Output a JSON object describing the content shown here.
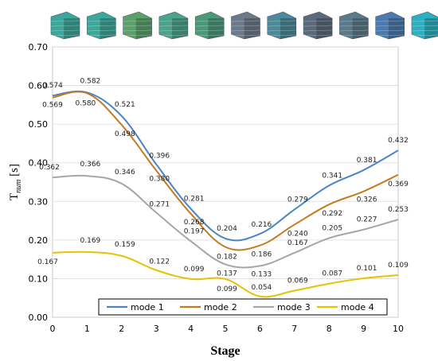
{
  "chart_data": {
    "type": "line",
    "xlabel": "Stage",
    "ylabel_main": "T",
    "ylabel_sub": "num",
    "ylabel_unit": " [s]",
    "xlim": [
      0,
      10
    ],
    "ylim": [
      0,
      0.7
    ],
    "x": [
      0,
      1,
      2,
      3,
      4,
      5,
      6,
      7,
      8,
      9,
      10
    ],
    "x_tick_labels": [
      "0",
      "1",
      "2",
      "3",
      "4",
      "5",
      "6",
      "7",
      "8",
      "9",
      "10"
    ],
    "y_ticks": [
      0,
      0.1,
      0.2,
      0.3,
      0.4,
      0.5,
      0.6,
      0.7
    ],
    "y_tick_labels": [
      "0.00",
      "0.10",
      "0.20",
      "0.30",
      "0.40",
      "0.50",
      "0.60",
      "0.70"
    ],
    "grid": "horizontal",
    "legend_position": "bottom-center",
    "series": [
      {
        "name": "mode 1",
        "color": "#4a86c7",
        "values": [
          0.574,
          0.582,
          0.521,
          0.396,
          0.281,
          0.204,
          0.216,
          0.279,
          0.341,
          0.381,
          0.432
        ],
        "labels": [
          "0.574",
          "0.582",
          "0.521",
          "0.396",
          "0.281",
          "0.204",
          "0.216",
          "0.279",
          "0.341",
          "0.381",
          "0.432"
        ]
      },
      {
        "name": "mode 2",
        "color": "#c47a1f",
        "values": [
          0.569,
          0.58,
          0.498,
          0.38,
          0.268,
          0.182,
          0.186,
          0.24,
          0.292,
          0.326,
          0.369
        ],
        "labels": [
          "0.569",
          "0.580",
          "0.498",
          "0.380",
          "0.268",
          "0.182",
          "0.186",
          "0.240",
          "0.292",
          "0.326",
          "0.369"
        ]
      },
      {
        "name": "mode 3",
        "color": "#a6a6a6",
        "values": [
          0.362,
          0.366,
          0.346,
          0.271,
          0.197,
          0.137,
          0.133,
          0.167,
          0.205,
          0.227,
          0.253
        ],
        "labels": [
          "0.362",
          "0.366",
          "0.346",
          "0.271",
          "0.197",
          "0.137",
          "0.133",
          "0.167",
          "0.205",
          "0.227",
          "0.253"
        ]
      },
      {
        "name": "mode 4",
        "color": "#e6c200",
        "values": [
          0.167,
          0.169,
          0.159,
          0.122,
          0.099,
          0.099,
          0.054,
          0.069,
          0.087,
          0.101,
          0.109
        ],
        "labels": [
          "0.167",
          "0.169",
          "0.159",
          "0.122",
          "0.099",
          "0.099",
          "0.054",
          "0.069",
          "0.087",
          "0.101",
          "0.109"
        ]
      }
    ]
  },
  "header_images": {
    "count": 11,
    "colors": [
      "#3aa89a",
      "#3aa89a",
      "#5aa06a",
      "#4aa38a",
      "#4a9a7a",
      "#6a7a8a",
      "#4a8a9a",
      "#5a6a7a",
      "#5a7a8a",
      "#4a7ab0",
      "#2ab0c0"
    ]
  }
}
